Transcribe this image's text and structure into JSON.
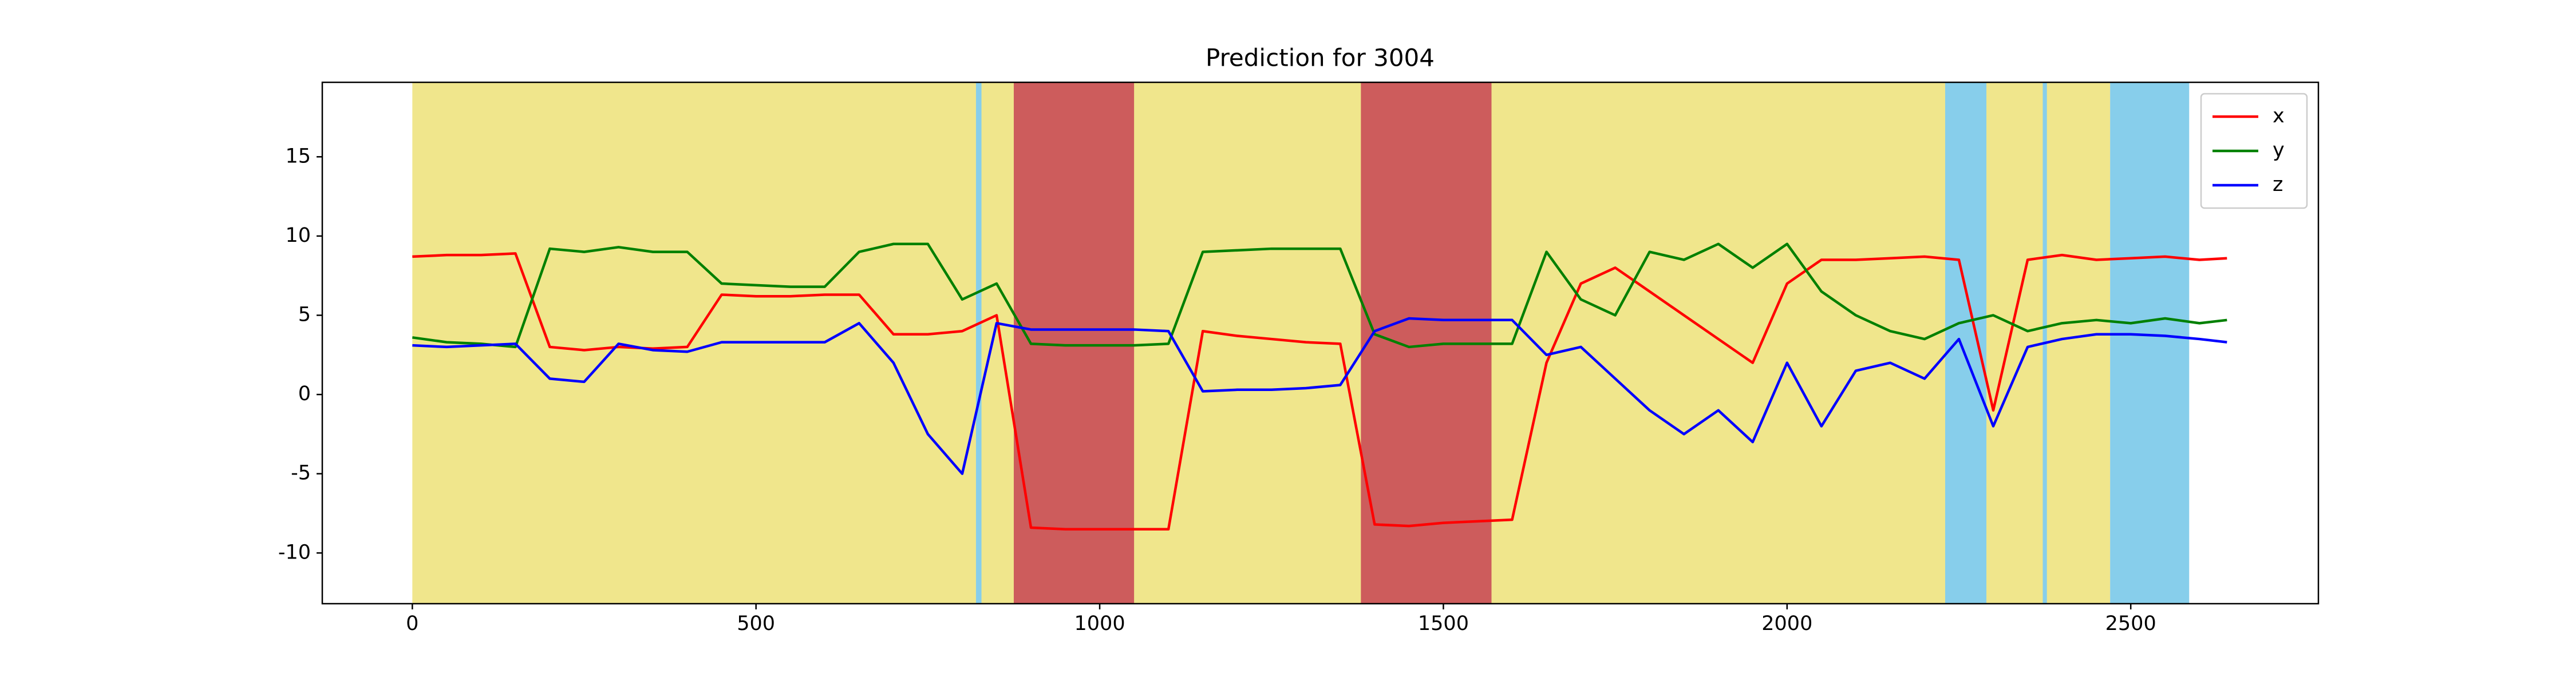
{
  "chart_data": {
    "type": "line",
    "title": "Prediction for 3004",
    "x": [
      0,
      50,
      100,
      150,
      200,
      250,
      300,
      350,
      400,
      450,
      500,
      550,
      600,
      650,
      700,
      750,
      800,
      850,
      900,
      950,
      1000,
      1050,
      1100,
      1150,
      1200,
      1250,
      1300,
      1350,
      1400,
      1450,
      1500,
      1550,
      1600,
      1650,
      1700,
      1750,
      1800,
      1850,
      1900,
      1950,
      2000,
      2050,
      2100,
      2150,
      2200,
      2250,
      2300,
      2350,
      2400,
      2450,
      2500,
      2550,
      2600,
      2640
    ],
    "series": [
      {
        "name": "x",
        "color": "#ff0000",
        "values": [
          8.7,
          8.8,
          8.8,
          8.9,
          3.0,
          2.8,
          3.0,
          2.9,
          3.0,
          6.3,
          6.2,
          6.2,
          6.3,
          6.3,
          3.8,
          3.8,
          4.0,
          5.0,
          -8.4,
          -8.5,
          -8.5,
          -8.5,
          -8.5,
          4.0,
          3.7,
          3.5,
          3.3,
          3.2,
          -8.2,
          -8.3,
          -8.1,
          -8.0,
          -7.9,
          2.0,
          7.0,
          8.0,
          6.5,
          5.0,
          3.5,
          2.0,
          7.0,
          8.5,
          8.5,
          8.6,
          8.7,
          8.5,
          -1.0,
          8.5,
          8.8,
          8.5,
          8.6,
          8.7,
          8.5,
          8.6
        ]
      },
      {
        "name": "y",
        "color": "#008000",
        "values": [
          3.6,
          3.3,
          3.2,
          3.0,
          9.2,
          9.0,
          9.3,
          9.0,
          9.0,
          7.0,
          6.9,
          6.8,
          6.8,
          9.0,
          9.5,
          9.5,
          6.0,
          7.0,
          3.2,
          3.1,
          3.1,
          3.1,
          3.2,
          9.0,
          9.1,
          9.2,
          9.2,
          9.2,
          3.8,
          3.0,
          3.2,
          3.2,
          3.2,
          9.0,
          6.0,
          5.0,
          9.0,
          8.5,
          9.5,
          8.0,
          9.5,
          6.5,
          5.0,
          4.0,
          3.5,
          4.5,
          5.0,
          4.0,
          4.5,
          4.7,
          4.5,
          4.8,
          4.5,
          4.7
        ]
      },
      {
        "name": "z",
        "color": "#0000ff",
        "values": [
          3.1,
          3.0,
          3.1,
          3.2,
          1.0,
          0.8,
          3.2,
          2.8,
          2.7,
          3.3,
          3.3,
          3.3,
          3.3,
          4.5,
          2.0,
          -2.5,
          -5.0,
          4.5,
          4.1,
          4.1,
          4.1,
          4.1,
          4.0,
          0.2,
          0.3,
          0.3,
          0.4,
          0.6,
          4.0,
          4.8,
          4.7,
          4.7,
          4.7,
          2.5,
          3.0,
          1.0,
          -1.0,
          -2.5,
          -1.0,
          -3.0,
          2.0,
          -2.0,
          1.5,
          2.0,
          1.0,
          3.5,
          -2.0,
          3.0,
          3.5,
          3.8,
          3.8,
          3.7,
          3.5,
          3.3
        ]
      }
    ],
    "spans": [
      {
        "start": 0,
        "end": 2470,
        "color": "#f0e68c"
      },
      {
        "start": 820,
        "end": 828,
        "color": "#87ceeb"
      },
      {
        "start": 875,
        "end": 1050,
        "color": "#cd5c5c"
      },
      {
        "start": 1380,
        "end": 1570,
        "color": "#cd5c5c"
      },
      {
        "start": 2230,
        "end": 2290,
        "color": "#87ceeb"
      },
      {
        "start": 2372,
        "end": 2378,
        "color": "#87ceeb"
      },
      {
        "start": 2470,
        "end": 2585,
        "color": "#87ceeb"
      }
    ],
    "xlim": [
      -131,
      2773
    ],
    "xticks": [
      0,
      500,
      1000,
      1500,
      2000,
      2500
    ],
    "ylim": [
      -13.2,
      19.7
    ],
    "yticks": [
      -10,
      -5,
      0,
      5,
      10,
      15
    ],
    "legend": "upper right"
  }
}
